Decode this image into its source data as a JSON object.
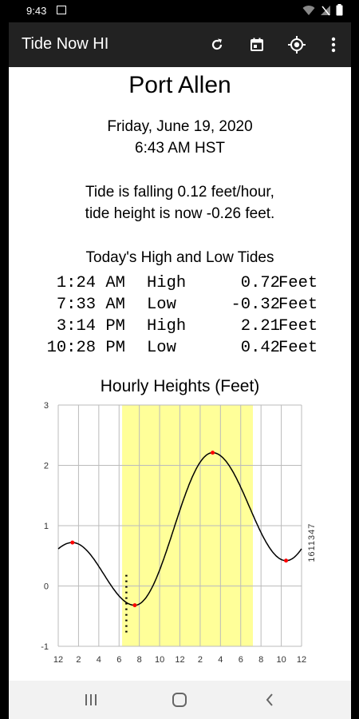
{
  "status": {
    "time": "9:43"
  },
  "app": {
    "title": "Tide Now HI"
  },
  "tide": {
    "location": "Port Allen",
    "date": "Friday, June 19, 2020",
    "time": "6:43 AM HST",
    "rate_line": "Tide is falling 0.12 feet/hour,",
    "height_line": "tide height is now -0.26 feet.",
    "table_title": "Today's High and Low Tides",
    "rows": [
      {
        "time": "1:24 AM",
        "type": "High",
        "height": "0.72",
        "unit": "Feet"
      },
      {
        "time": "7:33 AM",
        "type": "Low",
        "height": "-0.32",
        "unit": "Feet"
      },
      {
        "time": "3:14 PM",
        "type": "High",
        "height": "2.21",
        "unit": "Feet"
      },
      {
        "time": "10:28 PM",
        "type": "Low",
        "height": "0.42",
        "unit": "Feet"
      }
    ]
  },
  "chart_data": {
    "type": "line",
    "title": "Hourly Heights (Feet)",
    "station_label": "1611347",
    "x_tick_labels": [
      "12",
      "2",
      "4",
      "6",
      "8",
      "10",
      "12",
      "2",
      "4",
      "6",
      "8",
      "10",
      "12"
    ],
    "y_tick_labels": [
      "3",
      "2",
      "1",
      "0",
      "-1"
    ],
    "xlim": [
      0,
      24
    ],
    "ylim": [
      -1,
      3
    ],
    "daylight_shade": [
      6.3,
      19.2
    ],
    "now_marker_hour": 6.72,
    "extrema": [
      {
        "x": 1.4,
        "y": 0.72
      },
      {
        "x": 7.55,
        "y": -0.32
      },
      {
        "x": 15.23,
        "y": 2.21
      },
      {
        "x": 22.47,
        "y": 0.42
      }
    ],
    "series": [
      {
        "x": [
          0,
          1.4,
          7.55,
          15.23,
          22.47,
          24
        ],
        "y": [
          0.66,
          0.72,
          -0.32,
          2.21,
          0.42,
          0.52
        ]
      }
    ],
    "colors": {
      "shade": "#ffff99",
      "line": "#000000",
      "extrema": "#ff0000",
      "grid": "#bbbbbb"
    }
  }
}
